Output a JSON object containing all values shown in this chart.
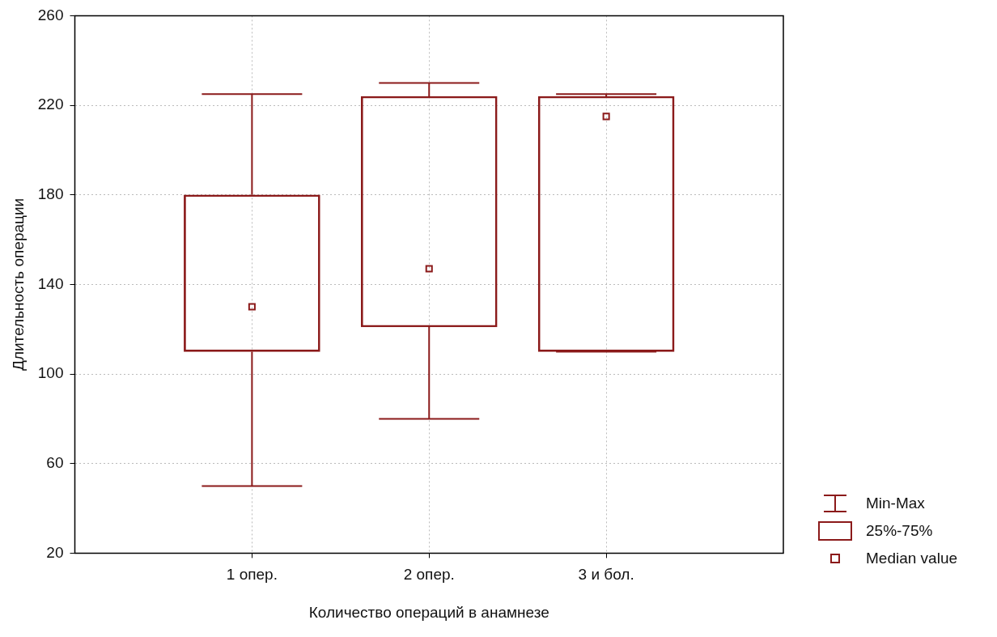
{
  "chart_data": {
    "type": "box",
    "xlabel": "Количество операций в анамнезе",
    "ylabel": "Длительность операции",
    "categories": [
      "1 опер.",
      "2 опер.",
      "3 и бол."
    ],
    "color": "#8b1a1a",
    "boxes": [
      {
        "low": 50,
        "q1": 110,
        "median": 130,
        "q3": 180,
        "high": 225
      },
      {
        "low": 80,
        "q1": 121,
        "median": 147,
        "q3": 224,
        "high": 230
      },
      {
        "low": 110,
        "q1": 110,
        "median": 215,
        "q3": 224,
        "high": 225
      }
    ],
    "ylim": [
      20,
      260
    ],
    "yticks": [
      20,
      60,
      100,
      140,
      180,
      220,
      260
    ],
    "grid": true,
    "annotations": [
      "Min-Max",
      "25%-75%",
      "Median value"
    ]
  }
}
